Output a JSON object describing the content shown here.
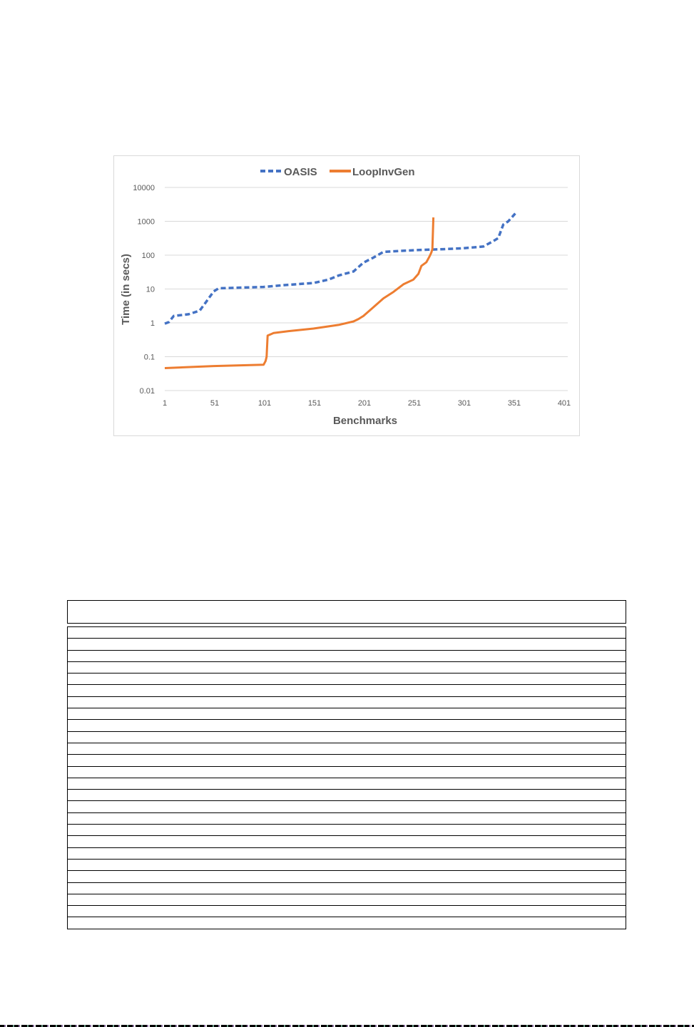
{
  "chart_data": {
    "type": "line",
    "title": "",
    "xlabel": "Benchmarks",
    "ylabel": "Time (in secs)",
    "yscale": "log",
    "ylim": [
      0.01,
      10000
    ],
    "xlim": [
      1,
      401
    ],
    "x_ticks": [
      "1",
      "51",
      "101",
      "151",
      "201",
      "251",
      "301",
      "351",
      "401"
    ],
    "y_ticks": [
      "10000",
      "1000",
      "100",
      "10",
      "1",
      "0.1",
      "0.01"
    ],
    "grid": true,
    "legend_position": "top",
    "series": [
      {
        "name": "OASIS",
        "color": "#4472C4",
        "style": "dashed",
        "x": [
          1,
          5,
          10,
          25,
          36,
          42,
          50,
          55,
          100,
          120,
          150,
          165,
          175,
          190,
          200,
          210,
          220,
          250,
          280,
          300,
          320,
          330,
          335,
          340,
          345,
          352
        ],
        "y": [
          0.95,
          1.05,
          1.6,
          1.8,
          2.3,
          4,
          8.5,
          10.5,
          11.5,
          13,
          15,
          19,
          25,
          33,
          60,
          85,
          125,
          140,
          150,
          160,
          180,
          260,
          320,
          800,
          1000,
          1700
        ]
      },
      {
        "name": "LoopInvGen",
        "color": "#ED7D31",
        "style": "solid",
        "x": [
          1,
          50,
          100,
          102,
          103,
          104,
          110,
          125,
          150,
          175,
          190,
          195,
          200,
          210,
          220,
          230,
          240,
          250,
          255,
          258,
          263,
          266,
          268,
          269,
          270
        ],
        "y": [
          0.046,
          0.053,
          0.058,
          0.075,
          0.1,
          0.42,
          0.5,
          0.57,
          0.68,
          0.87,
          1.1,
          1.3,
          1.6,
          2.9,
          5.3,
          8.2,
          13.8,
          19,
          28,
          48,
          62,
          90,
          120,
          150,
          1300
        ]
      }
    ]
  },
  "chart": {
    "legend": [
      {
        "label": "OASIS"
      },
      {
        "label": "LoopInvGen"
      }
    ],
    "y_tick_labels": [
      "10000",
      "1000",
      "100",
      "10",
      "1",
      "0.1",
      "0.01"
    ],
    "x_tick_labels": [
      "1",
      "51",
      "101",
      "151",
      "201",
      "251",
      "301",
      "351",
      "401"
    ],
    "xlabel": "Benchmarks",
    "ylabel": "Time (in secs)"
  },
  "table": {
    "header_text": "",
    "row_count": 26,
    "rows": [
      "",
      "",
      "",
      "",
      "",
      "",
      "",
      "",
      "",
      "",
      "",
      "",
      "",
      "",
      "",
      "",
      "",
      "",
      "",
      "",
      "",
      "",
      "",
      "",
      "",
      ""
    ]
  }
}
